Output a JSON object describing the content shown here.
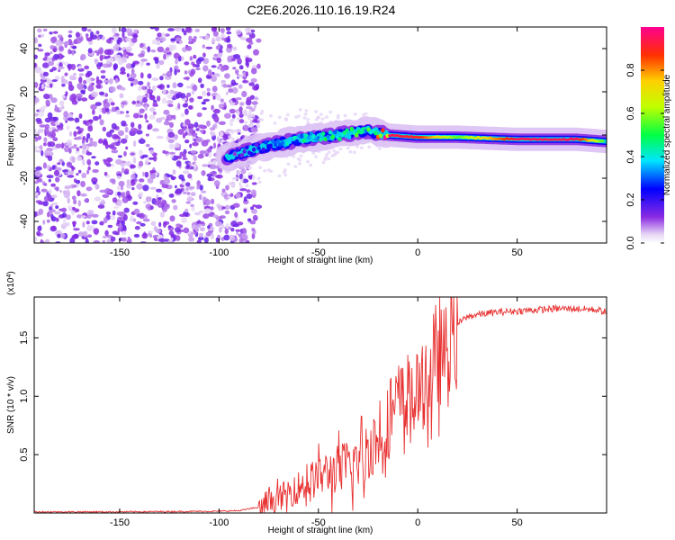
{
  "chart_data": [
    {
      "type": "heatmap",
      "title": "C2E6.2026.110.16.19.R24",
      "xlabel": "Height of straight line (km)",
      "ylabel": "Frequency (Hz)",
      "xlim": [
        -193,
        95
      ],
      "ylim": [
        -50,
        50
      ],
      "xticks": [
        -150,
        -100,
        -50,
        0,
        50
      ],
      "yticks": [
        -40,
        -20,
        0,
        20,
        40
      ],
      "colorbar": {
        "label": "Normalized spectral amplitude",
        "range": [
          0,
          1
        ],
        "ticks": [
          0.0,
          0.2,
          0.4,
          0.6,
          0.8
        ]
      },
      "description_points": {
        "noise_region_x": [
          -193,
          -90
        ],
        "signal_track": {
          "x": [
            -95,
            -80,
            -60,
            -40,
            -25,
            -15,
            0,
            20,
            50,
            80,
            95
          ],
          "freq_hz": [
            -10,
            -6,
            -2,
            0,
            2,
            0,
            -1,
            -1,
            -2,
            -2,
            -3
          ],
          "amplitude": [
            0.15,
            0.25,
            0.4,
            0.45,
            0.5,
            0.95,
            0.9,
            0.55,
            0.95,
            0.95,
            0.5
          ]
        }
      }
    },
    {
      "type": "line",
      "xlabel": "Height of straight line (km)",
      "ylabel": "SNR (10 * v/v)",
      "y_scale_label": "(x10",
      "y_scale_exp": "4",
      "xlim": [
        -193,
        95
      ],
      "ylim": [
        0,
        1.85
      ],
      "xticks": [
        -150,
        -100,
        -50,
        0,
        50
      ],
      "yticks": [
        0.5,
        1.0,
        1.5
      ],
      "series": [
        {
          "name": "SNR",
          "color": "#e83030",
          "x": [
            -193,
            -150,
            -100,
            -90,
            -80,
            -75,
            -70,
            -60,
            -50,
            -40,
            -30,
            -20,
            -10,
            -5,
            0,
            5,
            10,
            15,
            20,
            25,
            30,
            40,
            50,
            60,
            70,
            80,
            90,
            95
          ],
          "y": [
            0.01,
            0.01,
            0.015,
            0.02,
            0.05,
            0.1,
            0.15,
            0.25,
            0.35,
            0.42,
            0.5,
            0.7,
            1.0,
            1.05,
            1.1,
            1.2,
            1.35,
            1.5,
            1.62,
            1.68,
            1.7,
            1.72,
            1.73,
            1.74,
            1.75,
            1.75,
            1.74,
            1.72
          ]
        }
      ]
    }
  ]
}
